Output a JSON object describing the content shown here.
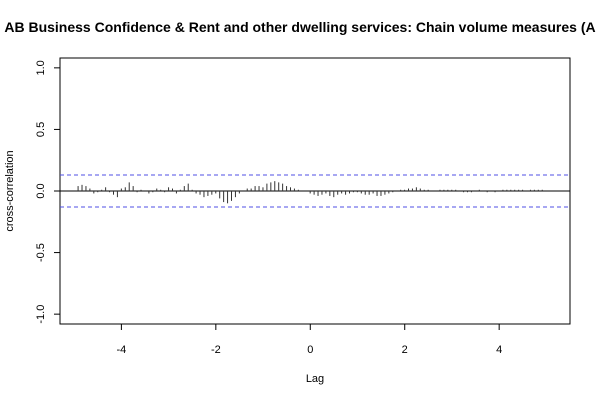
{
  "chart_data": {
    "type": "bar",
    "title": "AB Business Confidence & Rent and other dwelling services: Chain volume measures (A",
    "xlabel": "Lag",
    "ylabel": "cross-correlation",
    "xlim": [
      -5.3,
      5.5
    ],
    "ylim": [
      -1.08,
      1.08
    ],
    "x_ticks": [
      -4,
      -2,
      0,
      2,
      4
    ],
    "y_ticks": [
      -1.0,
      -0.5,
      0.0,
      0.5,
      1.0
    ],
    "x_tick_labels": [
      "-4",
      "-2",
      "0",
      "2",
      "4"
    ],
    "y_tick_labels": [
      "-1.0",
      "-0.5",
      "0.0",
      "0.5",
      "1.0"
    ],
    "confidence_bound": 0.13,
    "lag_step": 0.0833,
    "lag_start": -4.917,
    "values": [
      0.04,
      0.05,
      0.04,
      0.02,
      -0.02,
      -0.01,
      0.01,
      0.03,
      -0.01,
      -0.03,
      -0.05,
      0.02,
      0.03,
      0.07,
      0.04,
      -0.01,
      0.01,
      0.0,
      -0.02,
      -0.01,
      0.02,
      0.01,
      -0.01,
      0.03,
      0.02,
      -0.02,
      0.01,
      0.04,
      0.06,
      0.01,
      -0.02,
      -0.03,
      -0.05,
      -0.04,
      -0.03,
      -0.02,
      -0.06,
      -0.09,
      -0.1,
      -0.08,
      -0.05,
      -0.02,
      0.0,
      0.02,
      0.02,
      0.04,
      0.04,
      0.03,
      0.06,
      0.07,
      0.08,
      0.07,
      0.06,
      0.04,
      0.03,
      0.02,
      0.01,
      0.0,
      0.0,
      -0.02,
      -0.03,
      -0.04,
      -0.03,
      -0.02,
      -0.04,
      -0.05,
      -0.03,
      -0.02,
      -0.03,
      -0.02,
      -0.01,
      -0.01,
      -0.02,
      -0.03,
      -0.03,
      -0.02,
      -0.04,
      -0.04,
      -0.03,
      -0.02,
      -0.01,
      0.0,
      0.01,
      0.01,
      0.02,
      0.02,
      0.03,
      0.02,
      0.01,
      0.01,
      0.0,
      0.0,
      0.01,
      0.01,
      0.01,
      0.01,
      0.01,
      0.0,
      -0.01,
      -0.01,
      -0.01,
      0.0,
      0.01,
      0.0,
      -0.01,
      0.0,
      -0.01,
      0.0,
      0.01,
      0.01,
      0.01,
      0.01,
      0.01,
      0.01,
      0.0,
      0.01,
      0.01,
      0.01,
      0.01
    ],
    "colors": {
      "bars": "#333333",
      "bounds": "#4f4fe6",
      "axis": "#000000"
    },
    "grid": false
  }
}
